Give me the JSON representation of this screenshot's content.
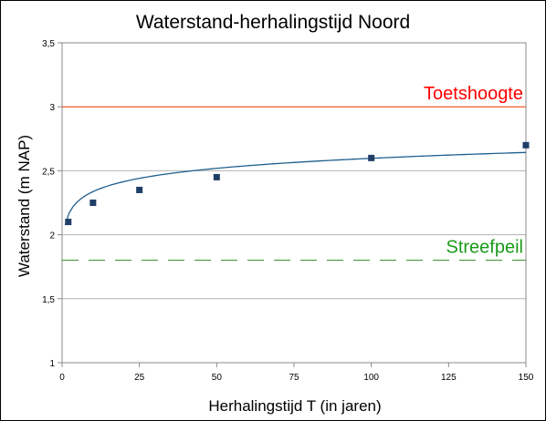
{
  "chart_data": {
    "type": "scatter",
    "title": "Waterstand-herhalingstijd Noord",
    "xlabel": "Herhalingstijd T (in jaren)",
    "ylabel": "Waterstand (m NAP)",
    "xlim": [
      0,
      150
    ],
    "ylim": [
      1,
      3.5
    ],
    "xticks": [
      0,
      25,
      50,
      75,
      100,
      125,
      150
    ],
    "xtick_labels": [
      "0",
      "25",
      "50",
      "75",
      "100",
      "125",
      "150"
    ],
    "yticks": [
      1,
      1.5,
      2,
      2.5,
      3,
      3.5
    ],
    "ytick_labels": [
      "1",
      "1,5",
      "2",
      "2,5",
      "3",
      "3,5"
    ],
    "grid": "horizontal",
    "series": [
      {
        "kind": "points",
        "color": "#1f3f66",
        "x": [
          2,
          10,
          25,
          50,
          100,
          150
        ],
        "y": [
          2.1,
          2.25,
          2.35,
          2.45,
          2.6,
          2.7
        ]
      },
      {
        "kind": "trendline",
        "model": "logarithmic",
        "color": "#1f5f8f",
        "x_start": 1,
        "x_end": 150,
        "coef_a": 2.077,
        "coef_b": 0.113
      },
      {
        "kind": "reference-line",
        "label": "Toetshoogte",
        "y": 3.0,
        "color": "#ff4500",
        "label_color": "#ff0000",
        "style": "solid"
      },
      {
        "kind": "reference-line",
        "label": "Streefpeil",
        "y": 1.8,
        "color": "#2e8b22",
        "label_color": "#1a9a1a",
        "style": "dashed"
      }
    ]
  }
}
